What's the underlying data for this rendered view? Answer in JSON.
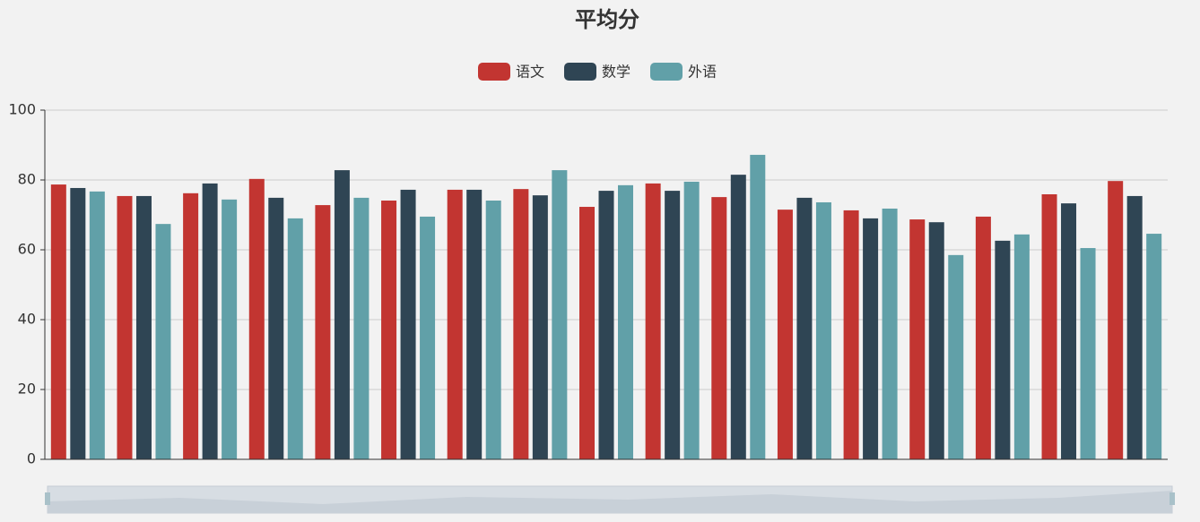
{
  "chart_data": {
    "type": "bar",
    "title": "平均分",
    "categories": [
      null,
      null,
      null,
      null,
      null,
      null,
      null,
      null,
      null,
      null,
      null,
      null,
      null,
      null,
      null,
      null,
      null
    ],
    "series": [
      {
        "name": "语文",
        "color": "#c23531",
        "values": [
          78.7,
          75.4,
          76.2,
          80.3,
          72.8,
          74.1,
          77.2,
          77.4,
          72.3,
          79.0,
          75.1,
          71.5,
          71.3,
          68.7,
          69.5,
          75.9,
          79.7
        ]
      },
      {
        "name": "数学",
        "color": "#2f4554",
        "values": [
          77.7,
          75.4,
          79.0,
          74.9,
          82.8,
          77.2,
          77.2,
          75.6,
          76.9,
          76.9,
          81.5,
          74.9,
          69.0,
          67.9,
          62.6,
          73.3,
          75.4
        ]
      },
      {
        "name": "外语",
        "color": "#61a0a8",
        "values": [
          76.7,
          67.4,
          74.4,
          69.0,
          74.9,
          69.5,
          74.1,
          82.8,
          78.5,
          79.5,
          87.2,
          73.6,
          71.8,
          58.5,
          64.4,
          60.5,
          64.6
        ]
      }
    ],
    "ylim": [
      0,
      100
    ],
    "yticks": [
      0,
      20,
      40,
      60,
      80,
      100
    ],
    "grid": true,
    "legend": "top"
  }
}
